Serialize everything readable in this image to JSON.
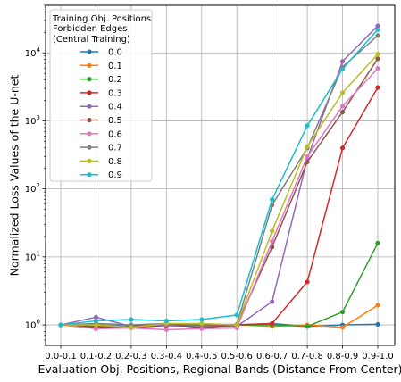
{
  "chart_data": {
    "type": "line",
    "xlabel": "Evaluation Obj. Positions, Regional Bands (Distance From Center)",
    "ylabel": "Normalized Loss Values of the U-net",
    "yscale": "log",
    "ylim": [
      0.5,
      50000
    ],
    "yticks": [
      {
        "value": 1,
        "base": "10",
        "exp": "0"
      },
      {
        "value": 10,
        "base": "10",
        "exp": "1"
      },
      {
        "value": 100,
        "base": "10",
        "exp": "2"
      },
      {
        "value": 1000,
        "base": "10",
        "exp": "3"
      },
      {
        "value": 10000,
        "base": "10",
        "exp": "4"
      }
    ],
    "grid": true,
    "categories": [
      "0.0-0.1",
      "0.1-0.2",
      "0.2-0.3",
      "0.3-0.4",
      "0.4-0.5",
      "0.5-0.6",
      "0.6-0.7",
      "0.7-0.8",
      "0.8-0.9",
      "0.9-1.0"
    ],
    "legend": {
      "title_lines": [
        "Training Obj. Positions",
        "Forbidden Edges",
        "(Central Training)"
      ],
      "placement": "upper left"
    },
    "series": [
      {
        "name": "0.0",
        "color": "#1f77b4",
        "values": [
          1.0,
          1.0,
          0.95,
          1.0,
          0.95,
          1.0,
          1.05,
          0.95,
          1.0,
          1.02
        ]
      },
      {
        "name": "0.1",
        "color": "#ff7f0e",
        "values": [
          1.0,
          1.0,
          0.92,
          1.0,
          0.95,
          1.0,
          0.95,
          1.0,
          0.92,
          1.95
        ]
      },
      {
        "name": "0.2",
        "color": "#2ca02c",
        "values": [
          1.0,
          0.95,
          0.95,
          1.0,
          0.98,
          1.0,
          1.0,
          0.95,
          1.55,
          16
        ]
      },
      {
        "name": "0.3",
        "color": "#d62728",
        "values": [
          1.0,
          0.92,
          0.92,
          0.98,
          0.95,
          1.0,
          1.05,
          4.3,
          400,
          3100
        ]
      },
      {
        "name": "0.4",
        "color": "#9467bd",
        "values": [
          1.0,
          1.3,
          0.95,
          1.0,
          0.95,
          0.95,
          2.2,
          280,
          7500,
          25000
        ]
      },
      {
        "name": "0.5",
        "color": "#8c564b",
        "values": [
          1.0,
          0.9,
          0.95,
          1.05,
          0.9,
          1.0,
          14,
          250,
          1350,
          8200
        ]
      },
      {
        "name": "0.6",
        "color": "#e377c2",
        "values": [
          1.0,
          0.88,
          0.9,
          0.85,
          0.88,
          0.9,
          17,
          300,
          1650,
          5900
        ]
      },
      {
        "name": "0.7",
        "color": "#7f7f7f",
        "values": [
          1.0,
          1.05,
          1.0,
          1.05,
          1.0,
          1.02,
          58,
          400,
          6200,
          18000
        ]
      },
      {
        "name": "0.8",
        "color": "#bcbd22",
        "values": [
          1.0,
          1.0,
          0.92,
          1.05,
          1.05,
          1.0,
          24,
          420,
          2600,
          9600
        ]
      },
      {
        "name": "0.9",
        "color": "#17becf",
        "values": [
          1.0,
          1.15,
          1.2,
          1.15,
          1.2,
          1.4,
          70,
          850,
          5800,
          22000
        ]
      }
    ]
  }
}
